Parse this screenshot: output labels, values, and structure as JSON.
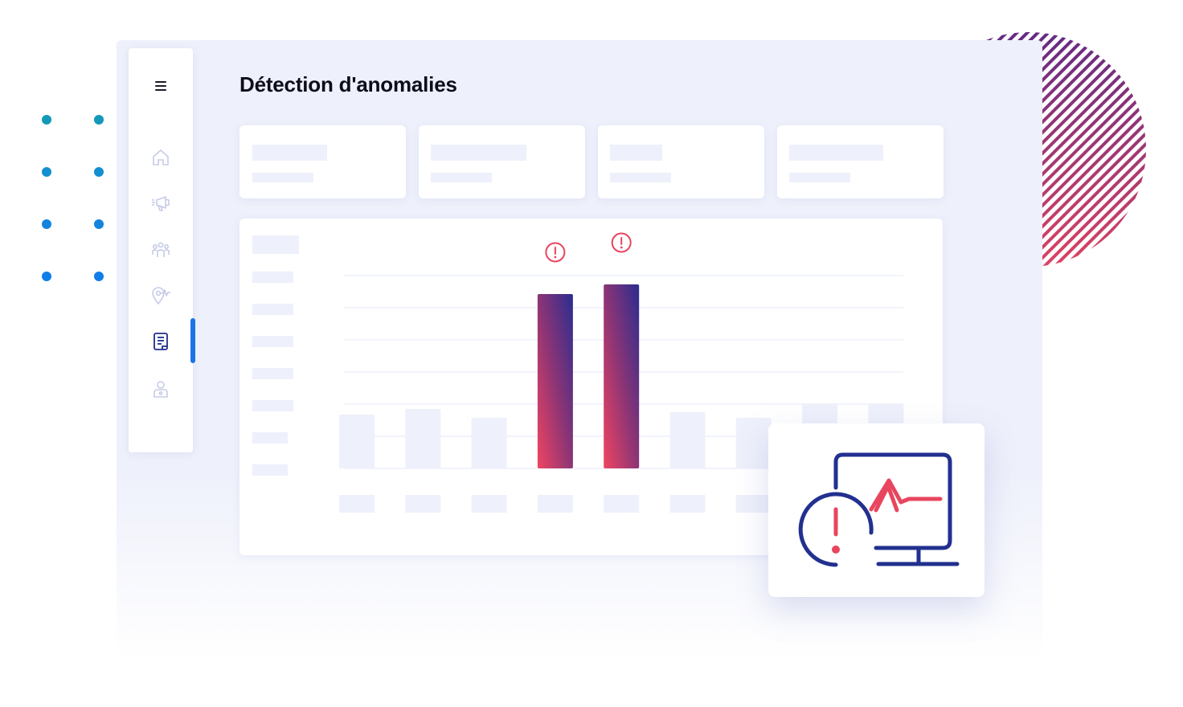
{
  "page": {
    "title": "Détection d'anomalies"
  },
  "colors": {
    "accent": "#1a73e8",
    "alert": "#e8455f",
    "navy": "#22308f",
    "placeholder": "#eef0fb",
    "background": "#eef0fb"
  },
  "sidebar": {
    "menu_icon": "hamburger-icon",
    "items": [
      {
        "icon": "home-icon",
        "active": false
      },
      {
        "icon": "megaphone-icon",
        "active": false
      },
      {
        "icon": "people-icon",
        "active": false
      },
      {
        "icon": "location-pulse-icon",
        "active": false
      },
      {
        "icon": "report-icon",
        "active": true
      },
      {
        "icon": "user-icon",
        "active": false
      }
    ]
  },
  "kpi_cards": [
    {
      "title": "",
      "value": ""
    },
    {
      "title": "",
      "value": ""
    },
    {
      "title": "",
      "value": ""
    },
    {
      "title": "",
      "value": ""
    }
  ],
  "chart_data": {
    "type": "bar",
    "title": "",
    "categories": [
      "",
      "",
      "",
      "",
      "",
      "",
      "",
      "",
      ""
    ],
    "values": [
      67,
      74,
      63,
      217,
      229,
      70,
      63,
      80,
      80
    ],
    "anomalies": [
      false,
      false,
      false,
      true,
      true,
      false,
      false,
      false,
      false
    ],
    "ylim": [
      0,
      240
    ],
    "grid": true,
    "legend": "none"
  },
  "monitor_card": {
    "icon": "monitor-alert-icon"
  }
}
